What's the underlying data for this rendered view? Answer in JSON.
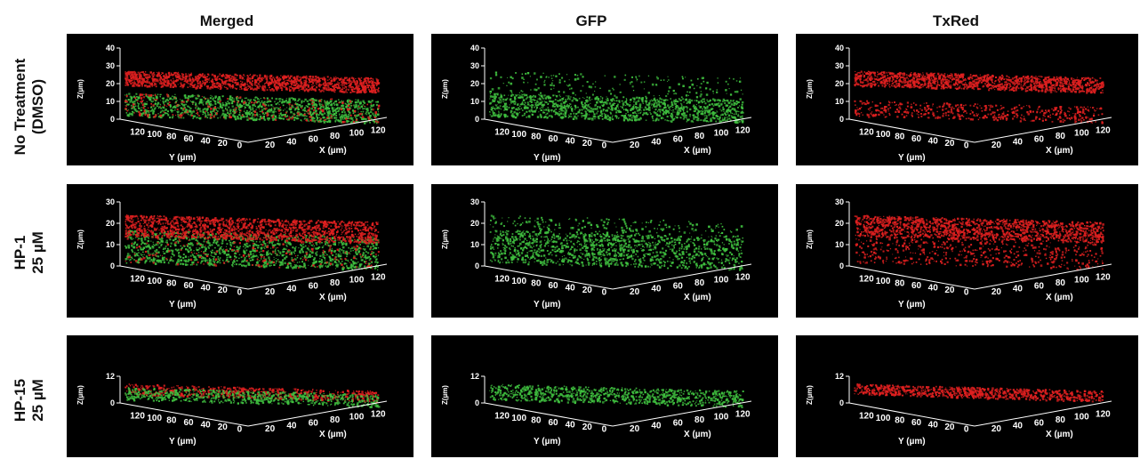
{
  "columns": [
    "Merged",
    "GFP",
    "TxRed"
  ],
  "rows": [
    {
      "label_line1": "No Treatment",
      "label_line2": "(DMSO)",
      "z_ticks": [
        "40",
        "30",
        "20",
        "10",
        "0"
      ],
      "y_ticks": [
        "120",
        "100",
        "80",
        "60",
        "40",
        "20",
        "0"
      ],
      "x_ticks": [
        "20",
        "40",
        "60",
        "80",
        "100",
        "120"
      ]
    },
    {
      "label_line1": "HP-1",
      "label_line2": "25 µM",
      "z_ticks": [
        "30",
        "20",
        "10",
        "0"
      ],
      "y_ticks": [
        "120",
        "100",
        "80",
        "60",
        "40",
        "20",
        "0"
      ],
      "x_ticks": [
        "20",
        "40",
        "60",
        "80",
        "100",
        "120"
      ]
    },
    {
      "label_line1": "HP-15",
      "label_line2": "25 µM",
      "z_ticks": [
        "12",
        "0"
      ],
      "y_ticks": [
        "120",
        "100",
        "80",
        "60",
        "40",
        "20",
        "0"
      ],
      "x_ticks": [
        "20",
        "40",
        "60",
        "80",
        "100",
        "120"
      ]
    }
  ],
  "axis_labels": {
    "z": "Z(µm)",
    "y": "Y (µm)",
    "x": "X (µm)"
  },
  "colors": {
    "green": "#3fbf3f",
    "red": "#e02020",
    "panel_bg": "#000000"
  }
}
